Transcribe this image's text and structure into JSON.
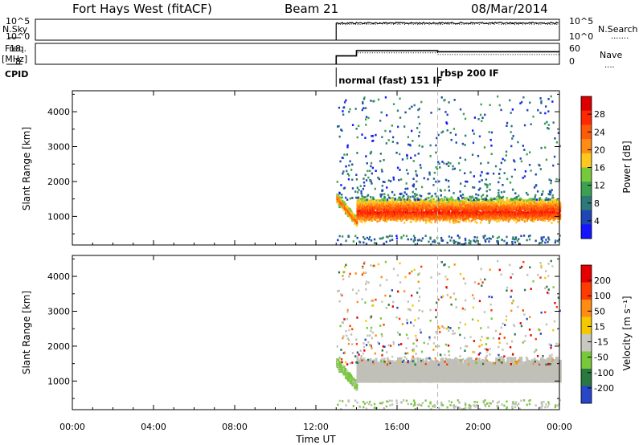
{
  "header": {
    "station": "Fort Hays West (fitACF)",
    "beam": "Beam 21",
    "date": "08/Mar/2014"
  },
  "top_panels": {
    "nsky": {
      "label": "N.Sky",
      "ticks": [
        "10^5",
        "10^0"
      ]
    },
    "nsearch": {
      "label": "N.Search",
      "ticks": [
        "10^5",
        "10^0"
      ]
    },
    "freq": {
      "label_line1": "Freq.",
      "label_line2": "[MHz]",
      "ticks": [
        "18",
        "8"
      ]
    },
    "nave": {
      "label": "Nave",
      "ticks": [
        "60",
        "0"
      ]
    },
    "cpid": {
      "label": "CPID",
      "modes": [
        {
          "name": "normal (fast) 151 IF",
          "start_hour": 13.0
        },
        {
          "name": "rbsp 200 IF",
          "start_hour": 18.0
        }
      ]
    }
  },
  "colors": {
    "power_scale": [
      "#1414ff",
      "#1e46b4",
      "#2d7878",
      "#3ca050",
      "#78c83c",
      "#ffc81e",
      "#ff8c14",
      "#ff5a0a",
      "#ff2800",
      "#dc0000"
    ],
    "velocity_scale": [
      "#2846c8",
      "#287840",
      "#78c83c",
      "#c8c8c0",
      "#f5c800",
      "#ff8c14",
      "#ff3c00",
      "#e60000"
    ],
    "ground_scatter": "#c0c0b8"
  },
  "chart_data": {
    "type": "heatmap",
    "xlabel": "Time UT",
    "x_ticks": [
      "00:00",
      "04:00",
      "08:00",
      "12:00",
      "16:00",
      "20:00",
      "00:00"
    ],
    "x_range_hours": [
      0,
      24
    ],
    "ylabel": "Slant Range [km]",
    "y_range_km": [
      180,
      4600
    ],
    "y_ticks": [
      1000,
      2000,
      3000,
      4000
    ],
    "data_start_hour": 13.0,
    "noise_level": {
      "nsky_log": 4.1,
      "nsearch_log": 4.1
    },
    "frequency_mhz": [
      {
        "from_hour": 13.0,
        "to_hour": 14.0,
        "freq": 12.0
      },
      {
        "from_hour": 14.0,
        "to_hour": 18.0,
        "freq": 14.5
      },
      {
        "from_hour": 18.0,
        "to_hour": 24.0,
        "freq": 14.0
      }
    ],
    "nave": [
      {
        "from_hour": 13.0,
        "to_hour": 14.0,
        "nave": 25
      },
      {
        "from_hour": 14.0,
        "to_hour": 18.0,
        "nave": 33
      },
      {
        "from_hour": 18.0,
        "to_hour": 24.0,
        "nave": 28
      }
    ],
    "panels": [
      {
        "name": "power",
        "colorbar_label": "Power [dB]",
        "colorbar_ticks": [
          "28",
          "24",
          "20",
          "16",
          "12",
          "8",
          "4"
        ],
        "range": [
          0,
          32
        ],
        "main_band": {
          "from_hour": 14.0,
          "to_hour": 24.0,
          "center_km": 1150,
          "halfwidth_km": 150,
          "peak_db": 28
        },
        "early_band": {
          "from_hour": 13.0,
          "to_hour": 14.0,
          "start_km": 1550,
          "end_km": 850
        },
        "sparse_echoes": {
          "from_hour": 13.0,
          "to_hour": 24.0,
          "range_km": [
            1500,
            4500
          ]
        }
      },
      {
        "name": "velocity",
        "colorbar_label": "Velocity [m s⁻¹]",
        "colorbar_ticks": [
          "200",
          "100",
          "50",
          "15",
          "-15",
          "-50",
          "-100",
          "-200"
        ],
        "range": [
          -250,
          250
        ],
        "ground_scatter_band": {
          "from_hour": 14.0,
          "to_hour": 24.0,
          "range_km": [
            950,
            1700
          ]
        },
        "early_band": {
          "from_hour": 13.0,
          "to_hour": 14.0,
          "start_km": 1550,
          "end_km": 850
        },
        "sparse_echoes": {
          "from_hour": 13.0,
          "to_hour": 24.0,
          "range_km": [
            1500,
            4500
          ]
        }
      }
    ]
  }
}
